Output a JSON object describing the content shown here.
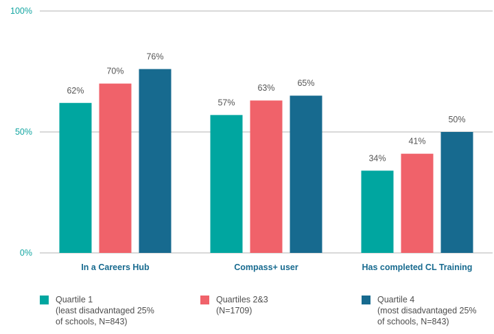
{
  "chart_data": {
    "type": "bar",
    "categories": [
      "In a Careers Hub",
      "Compass+ user",
      "Has completed CL Training"
    ],
    "series": [
      {
        "name": "Quartile 1",
        "color": "#00a6a0",
        "values": [
          62,
          57,
          34
        ]
      },
      {
        "name": "Quartiles 2&3",
        "color": "#f0626a",
        "values": [
          70,
          63,
          41
        ]
      },
      {
        "name": "Quartile 4",
        "color": "#176a8f",
        "values": [
          76,
          65,
          50
        ]
      }
    ],
    "data_labels": [
      [
        "62%",
        "57%",
        "34%"
      ],
      [
        "70%",
        "63%",
        "41%"
      ],
      [
        "76%",
        "65%",
        "50%"
      ]
    ],
    "yticks": [
      {
        "value": 0,
        "label": "0%"
      },
      {
        "value": 50,
        "label": "50%"
      },
      {
        "value": 100,
        "label": "100%"
      }
    ],
    "ylim": [
      0,
      100
    ],
    "grid": true,
    "legend_position": "bottom",
    "colors": {
      "axis_text": "#12a5a1",
      "category_text": "#176a8f",
      "label_text": "#555555",
      "grid": "#b3b3b3"
    }
  },
  "legend": [
    {
      "color": "#00a6a0",
      "lines": [
        "Quartile 1",
        "(least disadvantaged 25%",
        "of schools, N=843)"
      ]
    },
    {
      "color": "#f0626a",
      "lines": [
        "Quartiles 2&3",
        "(N=1709)"
      ]
    },
    {
      "color": "#176a8f",
      "lines": [
        "Quartile 4",
        "(most disadvantaged 25%",
        "of schools, N=843)"
      ]
    }
  ]
}
